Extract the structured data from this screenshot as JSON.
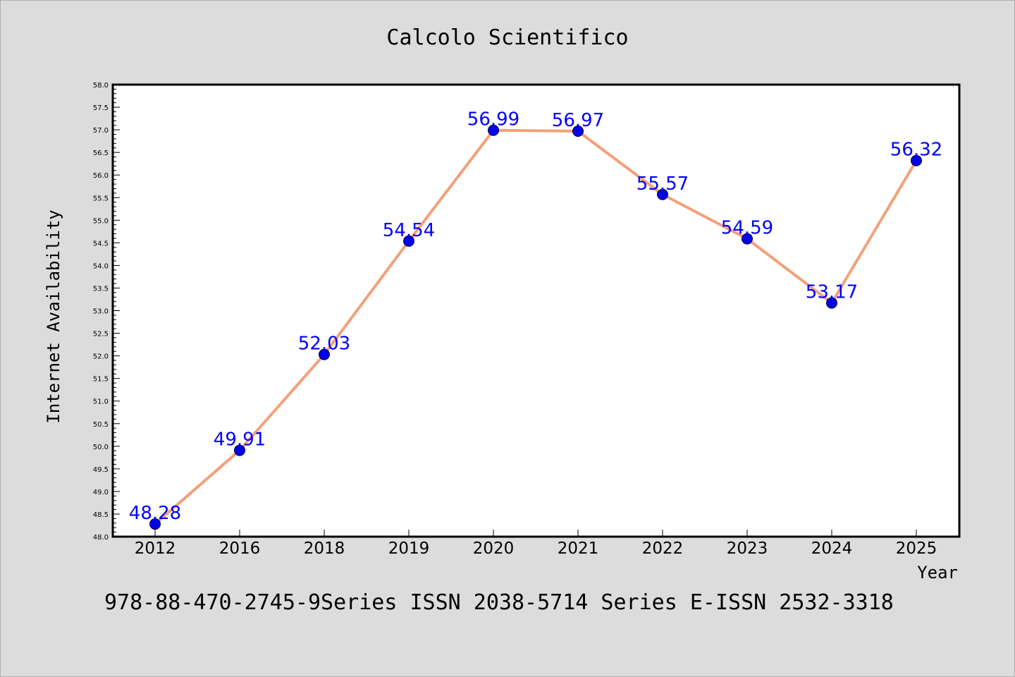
{
  "chart_data": {
    "type": "line",
    "title": "Calcolo Scientifico",
    "xlabel": "Year",
    "ylabel": "Internet Availability",
    "categories": [
      "2012",
      "2016",
      "2018",
      "2019",
      "2020",
      "2021",
      "2022",
      "2023",
      "2024",
      "2025"
    ],
    "series": [
      {
        "values": [
          48.28,
          49.91,
          52.03,
          54.54,
          56.99,
          56.97,
          55.57,
          54.59,
          53.17,
          56.32
        ],
        "line_color": "#f4a07a",
        "marker_color": "#0000ee"
      }
    ],
    "data_labels": [
      "48.28",
      "49.91",
      "52.03",
      "54.54",
      "56.99",
      "56.97",
      "55.57",
      "54.59",
      "53.17",
      "56.32"
    ],
    "ylim": [
      48.0,
      58.0
    ],
    "yticks": [
      "48.0",
      "48.5",
      "49.0",
      "49.5",
      "50.0",
      "50.5",
      "51.0",
      "51.5",
      "52.0",
      "52.5",
      "53.0",
      "53.5",
      "54.0",
      "54.5",
      "55.0",
      "55.5",
      "56.0",
      "56.5",
      "57.0",
      "57.5",
      "58.0"
    ],
    "grid": false,
    "legend": "none"
  },
  "footer_text": "978-88-470-2745-9Series ISSN 2038-5714 Series E-ISSN 2532-3318"
}
